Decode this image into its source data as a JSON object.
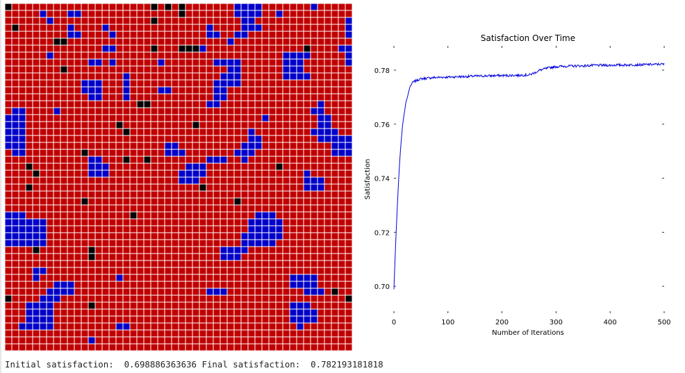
{
  "grid": {
    "colors": {
      "red": "#c00000",
      "blue": "#0000c8",
      "black": "#000000",
      "border": "#ffffff"
    },
    "rows": [
      "KRRRRRRRRRRRRRRRRRRRRKRKRKRRRRRRRBBBBRRRRRRRBRRRRR",
      "RRRRRBRRRBBRRRRRRRRRRRRRRKRRRRRRRBBBBRRBRRRRRRRRRR",
      "RRRRRRBRRRRRRRRRRRRRRKRRRRRRRRRRRRBBRRRRRRRRRRRRRB",
      "RKRRRRRRRBRRRRBRRRRRRRRRRRRRRBRRRRBBBRRRRRRRRRRRRB",
      "RRRRRRRRRBBRRRRBRRRRRRRRRRRRRBBRRBBRRRRRRRRRRRRRRB",
      "RRRRRRRKKRRRRRRRRRRRRRRRRRRRRRRRBRRRRRRRRRRRRRRRRR",
      "RRRRRRRRRRRRRRBBRRRRRKRRRKKKBRRRRRRRRRRRRRRKRRRRBB",
      "RRRRRRBRRRRRRRRRRRRRRRRRRRRRRRRRRRRRRRRRBBBBRRRRRB",
      "RRRRRRRRRRRRBBRBRRRRRRBRRRRRRRBBBBRRRRRRBBBRRRRRRB",
      "RRRRRRRRKRRRRRRRRRRRRRRRRRRRRRRRBBRRRRRRBBBRRRRRRR",
      "RRRRRRRRRRRRRRRRRBRRRRRRRRRRRRRBBBRRRRRRBBBBRRRRRR",
      "RRRRRRRRRRRBBBRRRBRRRRRRRRRRRRBBBBRRRRRRRRRRRRRRRR",
      "RRRRRRRRRRRBBBRRRBRRRRBBRRRRRRBBRRRRRRRRRRRRRRRRRR",
      "RRRRRRRRRRRRBBRRRBRRRRRRRRRRRRBBRRRRRRRRRRRRRRRRRR",
      "RRRRRRRRRRRRRRRRRRRKKRRRRRRRRBBRRRRRRRRRRRRRRBRRRR",
      "RBBRRRRBRRRRRRRRRRRRRRRRRRRRRRRRRRRRRRRRRRRRBBRRRR",
      "BBBRRRRRRRRRRRRRRRRRRRRRRRRRRRRRRRRRRBRRRRRRRBBRRR",
      "BBBRRRRRRRRRRRRRKRRRRRRRRRRKRRRRRRRRRRRRRRRRRBBRRR",
      "BBBRRRRRRRRRRRRRRKRRRRRRRRRRRRRRRRRBRRRRRRRRBBBBRR",
      "BBBRRRRRRRRRRRRRRRRRRRRRRRRRRRRRRRRBBRRRRRRRRBBBBB",
      "BBBRRRRRRRRRRRRRRRRRRRRBBRRRRRRRRRBBBRRRRRRRRRRBBB",
      "RBBRRRRRRRRKRRRRRRRRRRRBBBRRRRRRRBBBRRRRRRRRRRRBBB",
      "RRRRRRRRRRRRBBRRRKRRKRRRRRRRRBBBRRBRRRRRRRRRRRRRRR",
      "RRRKRRRRRRRRBBBRRRRRRRRRRRBBBRRRRRRRRRRKRRRRRRRRRR",
      "RRRRKRRRRRRRBBBRRRRRRRRRRBBBBRRRRRRRRRRRRRRBRRRRRR",
      "RRRRRRRRRRRRRRRRRRRRRRRRRBBBRRRRRRRRRRRRRRRBBBRRRR",
      "RRRKRRRRRRRRRRRRRRRRRRRRRRRRKRRRRRRRRRRRRRRBBBRRRR",
      "RRRRRRRRRRRRRRRRRRRRRRRRRRRRRRRRRRRRRRRRRRRRRRRRRR",
      "RRRRRRRRRRRKRRRRRRRRRRRRRRRRRRRRRKRRRRRRRRRRRRRRRR",
      "RRRRRRRRRRRRRRRRRRRRRRRRRRRRRRRRRRRRRRRRRRRRRRRRRR",
      "BBBRRRRRRRRRRRRRRRKRRRRRRRRRRRRRRRRRBBBRRRRRRRRRRR",
      "BBBBBBRRRRRRRRRRRRRRRRRRRRRRRRRRRRRBBBBBRRRRRRRRRR",
      "BBBBBBRRRRRRRRRRRRRRRRRRRRRRRRRRRRRBBBBBRRRRRRRRRR",
      "BBBBBBRRRRRRRRRRRRRRRRRRRRRRRRRRRRBBBBBBRRRRRRRRRR",
      "BBBBBBRRRRRRRRRRRRRRRRRRRRRRRRRRRRBBBBBRRRRRRRRRRR",
      "RRRRKRRRRRRRKRRRRRRRRRRRRRRRRRRBBBBRRRRRRRRRRRRRRR",
      "RRRRRRRRRRRRKRRRRRRRRRRRRRRRRRRBBBRRRRRRRRRRRRRRRR",
      "RRRRRRRRRRRRRRRRRRRRRRRRRRRRRRRRRRRRRRRRRRRRRRRRRR",
      "RRRRBBRRRRRRRRRRRRRRRRRRRRRRRRRRRRRRRRRRRRRRRRRRRR",
      "RRRRBRRRRRRRRRRRBRRRRRRRRRRRRRRRRRRRRRRRRBBBBRRRRR",
      "RRRRRRRBBBRRRRRRRRRRRRRRRRRRRRRRRRRRRRRRRBBBBRRRRR",
      "RRRRRRBBBBRRRRRRRRRRRRRRRRRRRBBBRRRRRRRRRRRBBBRKRR",
      "KRRRRBBBRRRRRRRRRRRRRRRRRRRRRRRRRRRRRRRRRRRRRRRRRK",
      "RRRBBBBRRRRRKRRRRRRRRRRRRRRRRRRRRRRRRRRRRBBBRRRRRR",
      "RRRBBBBRRRRRRRRRRRRRRRRRRRRRRRRRRRRRRRRRRBBBBRRRRR",
      "RRRBBBBRRRRRRRRRRRRRRRRRRRRRRRRRRRRRRRRRRBBBBRRRRR",
      "RRBBBBBRRRRRRRRRBBRRRRRRRRRRRRRRRRRRRRRRRRBRRRRRRR",
      "RRRRRRRRRRRRRRRRRRRRRRRRRRRRRRRRRRRRRRRRRRRRRRRRRR",
      "RRRRRRRRRRRRBRRRRRRRRRRRRRRRRRRRRRRRRRRRRRRRRRRRRR",
      "RRRRRRRRRRRRRRRRRRRRRRRRRRRRRRRRRRRRRRRRRRRRRRRRRR"
    ]
  },
  "chart_data": {
    "type": "line",
    "title": "Satisfaction Over Time",
    "xlabel": "Number of Iterations",
    "ylabel": "Satisfaction",
    "xlim": [
      0,
      500
    ],
    "ylim": [
      0.69,
      0.789
    ],
    "xticks": [
      0,
      100,
      200,
      300,
      400,
      500
    ],
    "xtick_labels": [
      "0",
      "100",
      "200",
      "300",
      "400",
      "500"
    ],
    "yticks": [
      0.7,
      0.72,
      0.74,
      0.76,
      0.78
    ],
    "ytick_labels": [
      "0.70",
      "0.72",
      "0.74",
      "0.76",
      "0.78"
    ],
    "grid": false,
    "color": "#0000dd",
    "x": [
      0,
      2,
      4,
      6,
      8,
      10,
      12,
      14,
      16,
      18,
      20,
      22,
      25,
      28,
      30,
      35,
      40,
      45,
      50,
      60,
      70,
      80,
      90,
      100,
      110,
      120,
      130,
      140,
      150,
      160,
      170,
      180,
      190,
      200,
      210,
      220,
      230,
      240,
      250,
      260,
      270,
      280,
      290,
      300,
      310,
      320,
      330,
      340,
      350,
      360,
      370,
      380,
      390,
      400,
      410,
      420,
      430,
      440,
      450,
      460,
      470,
      480,
      490,
      500
    ],
    "values": [
      0.6989,
      0.7095,
      0.7195,
      0.7282,
      0.7365,
      0.744,
      0.75,
      0.755,
      0.7595,
      0.7625,
      0.765,
      0.768,
      0.77,
      0.7725,
      0.774,
      0.7755,
      0.776,
      0.7765,
      0.7768,
      0.777,
      0.7772,
      0.7773,
      0.7774,
      0.7774,
      0.7775,
      0.7776,
      0.7776,
      0.7777,
      0.7778,
      0.7778,
      0.7779,
      0.7779,
      0.778,
      0.778,
      0.778,
      0.7781,
      0.7781,
      0.7782,
      0.7782,
      0.779,
      0.78,
      0.7805,
      0.781,
      0.7813,
      0.7814,
      0.7815,
      0.7815,
      0.7816,
      0.7816,
      0.7817,
      0.7818,
      0.7818,
      0.7818,
      0.7818,
      0.7819,
      0.7819,
      0.7819,
      0.782,
      0.782,
      0.782,
      0.7821,
      0.7821,
      0.7822,
      0.7822
    ]
  },
  "output": {
    "initial_label": "Initial satisfaction:",
    "initial_value": "0.698886363636",
    "final_label": "Final satisfaction:",
    "final_value": "0.782193181818"
  }
}
